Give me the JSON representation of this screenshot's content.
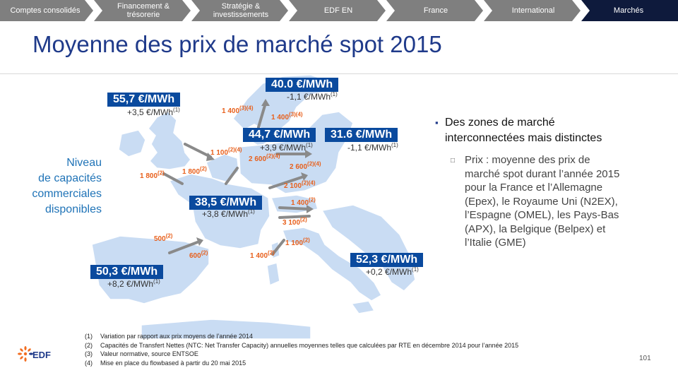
{
  "nav": {
    "tabs": [
      {
        "label": "Comptes consolidés",
        "active": false
      },
      {
        "label": "Financement &\ntrésorerie",
        "active": false
      },
      {
        "label": "Stratégie &\ninvestissements",
        "active": false
      },
      {
        "label": "EDF EN",
        "active": false
      },
      {
        "label": "France",
        "active": false
      },
      {
        "label": "International",
        "active": false
      },
      {
        "label": "Marchés",
        "active": true
      }
    ],
    "colors": {
      "inactive": "#7f7f7f",
      "active": "#0e1a3c",
      "title": "#1f3a8a",
      "price_box": "#0a4a9e",
      "capacity": "#e8601c",
      "map": "#c9dcf3"
    }
  },
  "title": "Moyenne des prix de marché spot 2015",
  "legend": {
    "line1": "Niveau",
    "line2": "de capacités",
    "line3": "commerciales",
    "line4": "disponibles"
  },
  "prices": {
    "uk": {
      "price": "55,7 €/MWh",
      "var": "+3,5 €/MWh",
      "sup": "(1)"
    },
    "nordic": {
      "price": "40.0 €/MWh",
      "var": "-1,1 €/MWh",
      "sup": "(1)"
    },
    "benelux": {
      "price": "44,7 €/MWh",
      "var": "+3,9 €/MWh",
      "sup": "(1)"
    },
    "germany": {
      "price": "31.6 €/MWh",
      "var": "-1,1 €/MWh",
      "sup": "(1)"
    },
    "france": {
      "price": "38,5 €/MWh",
      "var": "+3,8 €/MWh",
      "sup": "(1)"
    },
    "spain": {
      "price": "50,3 €/MWh",
      "var": "+8,2 €/MWh",
      "sup": "(1)"
    },
    "italy": {
      "price": "52,3 €/MWh",
      "var": "+0,2 €/MWh",
      "sup": "(1)"
    }
  },
  "capacities": {
    "c1": {
      "value": "1 400",
      "sup": "(3)(4)"
    },
    "c2": {
      "value": "1 400",
      "sup": "(3)(4)"
    },
    "c3": {
      "value": "1 100",
      "sup": "(2)(4)"
    },
    "c4": {
      "value": "2 600",
      "sup": "(2)(4)"
    },
    "c5": {
      "value": "2 600",
      "sup": "(2)(4)"
    },
    "c6": {
      "value": "1 800",
      "sup": "(2)"
    },
    "c7": {
      "value": "1 800",
      "sup": "(2)"
    },
    "c8": {
      "value": "2 100",
      "sup": "(2)(4)"
    },
    "c9": {
      "value": "1 400",
      "sup": "(2)"
    },
    "c10": {
      "value": "3 100",
      "sup": "(2)"
    },
    "c11": {
      "value": "500",
      "sup": "(2)"
    },
    "c12": {
      "value": "600",
      "sup": "(2)"
    },
    "c13": {
      "value": "1 100",
      "sup": "(2)"
    },
    "c14": {
      "value": "1 400",
      "sup": "(2)"
    }
  },
  "bullets": {
    "main_line1": "Des zones de marché",
    "main_line2": "interconnectées mais distinctes",
    "sub_lines": [
      "Prix : moyenne des prix de",
      "marché spot durant l’année 2015",
      "pour la France et l’Allemagne",
      "(Epex), le Royaume Uni (N2EX),",
      "l’Espagne (OMEL), les Pays-Bas",
      "(APX), la Belgique (Belpex) et",
      "l’Italie (GME)"
    ]
  },
  "footnotes": [
    {
      "num": "(1)",
      "text": "Variation par rapport aux prix moyens de l’année 2014"
    },
    {
      "num": "(2)",
      "text": "Capacités de Transfert Nettes (NTC: Net Transfer Capacity) annuelles moyennes telles que calculées par RTE en décembre 2014 pour l’année 2015"
    },
    {
      "num": "(3)",
      "text": "Valeur normative, source ENTSOE"
    },
    {
      "num": "(4)",
      "text": "Mise en place du flowbased à partir du 20 mai 2015"
    }
  ],
  "logo": {
    "text": "EDF",
    "icon": "edf-logo-icon"
  },
  "page_number": "101"
}
